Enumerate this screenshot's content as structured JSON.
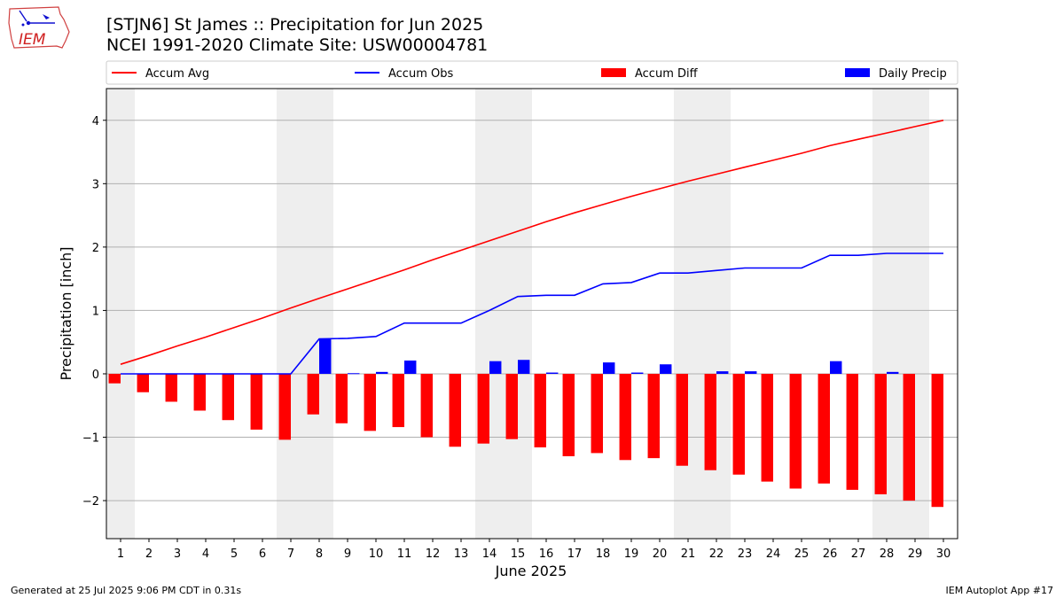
{
  "header": {
    "title_line1": "[STJN6] St James :: Precipitation for Jun 2025",
    "title_line2": "NCEI 1991-2020 Climate Site: USW00004781"
  },
  "logo": {
    "text": "IEM"
  },
  "footer": {
    "generated": "Generated at 25 Jul 2025 9:06 PM CDT in 0.31s",
    "app": "IEM Autoplot App #17"
  },
  "colors": {
    "avg": "#ff0000",
    "obs": "#0000ff",
    "diff": "#ff0000",
    "daily": "#0000ff",
    "weekend": "#eeeeee",
    "grid": "#b0b0b0"
  },
  "chart_data": {
    "type": "bar",
    "xlabel": "June 2025",
    "ylabel": "Precipitation [inch]",
    "ylim": [
      -2.6,
      4.5
    ],
    "yticks": [
      -2,
      -1,
      0,
      1,
      2,
      3,
      4
    ],
    "ytick_labels": [
      "−2",
      "−1",
      "0",
      "1",
      "2",
      "3",
      "4"
    ],
    "grid": "horizontal",
    "legend_position": "top",
    "categories": [
      "1",
      "2",
      "3",
      "4",
      "5",
      "6",
      "7",
      "8",
      "9",
      "10",
      "11",
      "12",
      "13",
      "14",
      "15",
      "16",
      "17",
      "18",
      "19",
      "20",
      "21",
      "22",
      "23",
      "24",
      "25",
      "26",
      "27",
      "28",
      "29",
      "30"
    ],
    "shaded_days": [
      1,
      7,
      8,
      14,
      15,
      21,
      22,
      28,
      29
    ],
    "series": [
      {
        "name": "Accum Avg",
        "kind": "line",
        "values": [
          0.15,
          0.29,
          0.44,
          0.58,
          0.73,
          0.88,
          1.04,
          1.19,
          1.34,
          1.49,
          1.64,
          1.8,
          1.95,
          2.1,
          2.25,
          2.4,
          2.54,
          2.67,
          2.8,
          2.92,
          3.04,
          3.15,
          3.26,
          3.37,
          3.48,
          3.6,
          3.7,
          3.8,
          3.9,
          4.0
        ]
      },
      {
        "name": "Accum Obs",
        "kind": "line",
        "values": [
          0.0,
          0.0,
          0.0,
          0.0,
          0.0,
          0.0,
          0.0,
          0.55,
          0.56,
          0.59,
          0.8,
          0.8,
          0.8,
          1.0,
          1.22,
          1.24,
          1.24,
          1.42,
          1.44,
          1.59,
          1.59,
          1.63,
          1.67,
          1.67,
          1.67,
          1.87,
          1.87,
          1.9,
          1.9,
          1.9
        ]
      },
      {
        "name": "Accum Diff",
        "kind": "bar",
        "values": [
          -0.15,
          -0.29,
          -0.44,
          -0.58,
          -0.73,
          -0.88,
          -1.04,
          -0.64,
          -0.78,
          -0.9,
          -0.84,
          -1.0,
          -1.15,
          -1.1,
          -1.03,
          -1.16,
          -1.3,
          -1.25,
          -1.36,
          -1.33,
          -1.45,
          -1.52,
          -1.59,
          -1.7,
          -1.81,
          -1.73,
          -1.83,
          -1.9,
          -2.0,
          -2.1
        ]
      },
      {
        "name": "Daily Precip",
        "kind": "bar",
        "values": [
          0.0,
          0.0,
          0.0,
          0.0,
          0.0,
          0.0,
          0.0,
          0.55,
          0.01,
          0.03,
          0.21,
          0.0,
          0.0,
          0.2,
          0.22,
          0.02,
          0.0,
          0.18,
          0.02,
          0.15,
          0.0,
          0.04,
          0.04,
          0.0,
          0.0,
          0.2,
          0.0,
          0.03,
          0.0,
          0.0
        ]
      }
    ]
  }
}
